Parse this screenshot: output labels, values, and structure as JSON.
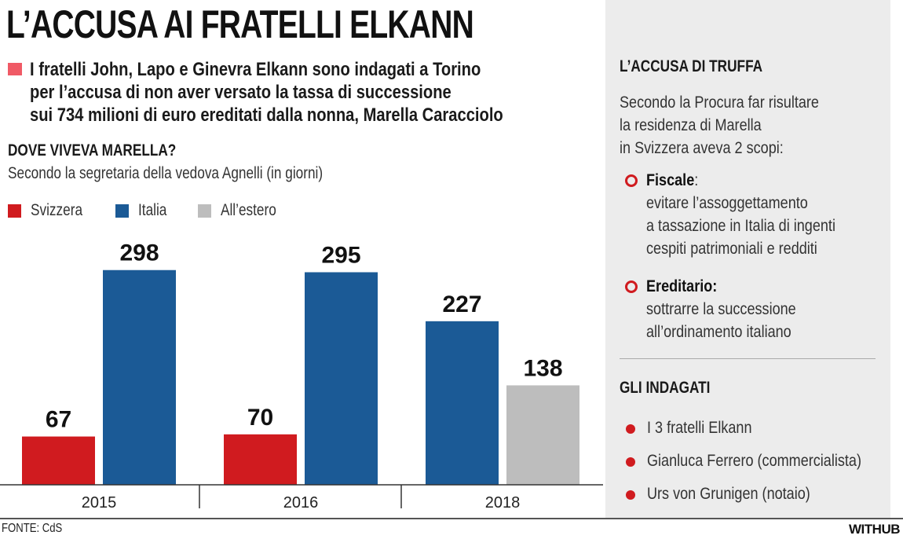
{
  "title": "L’ACCUSA AI FRATELLI ELKANN",
  "lead": [
    "I fratelli John, Lapo e Ginevra Elkann sono indagati a Torino",
    "per l’accusa di non aver versato la tassa di successione",
    "sui 734 milioni di euro ereditati dalla nonna, Marella Caracciolo"
  ],
  "colors": {
    "svizzera": "#d01b1f",
    "italia": "#1b5a96",
    "estero": "#bdbdbd",
    "accent": "#f05a66"
  },
  "chart_data": {
    "type": "bar",
    "title": "DOVE VIVEVA MARELLA?",
    "subtitle": "Secondo la segretaria della vedova Agnelli (in giorni)",
    "categories": [
      "2015",
      "2016",
      "2018"
    ],
    "series": [
      {
        "name": "Svizzera",
        "values": [
          67,
          70,
          null
        ]
      },
      {
        "name": "Italia",
        "values": [
          298,
          295,
          227
        ]
      },
      {
        "name": "All’estero",
        "values": [
          null,
          null,
          138
        ]
      }
    ],
    "legend_position": "top-left",
    "grid": false
  },
  "source": "FONTE: CdS",
  "brand": "WITHUB",
  "panel": {
    "accusa_title": "L’ACCUSA DI TRUFFA",
    "accusa_text": [
      "Secondo la Procura far risultare",
      "la residenza di Marella",
      "in Svizzera aveva 2 scopi:"
    ],
    "scopi": [
      {
        "label": "Fiscale",
        "suffix": ":",
        "lines": [
          "evitare l’assoggettamento",
          "a tassazione in Italia di ingenti",
          "cespiti patrimoniali e redditi"
        ]
      },
      {
        "label": "Ereditario:",
        "suffix": "",
        "lines": [
          "sottrarre la successione",
          "all’ordinamento italiano"
        ]
      }
    ],
    "indagati_title": "GLI INDAGATI",
    "indagati": [
      "I 3 fratelli Elkann",
      "Gianluca Ferrero (commercialista)",
      "Urs von Grunigen (notaio)"
    ]
  }
}
